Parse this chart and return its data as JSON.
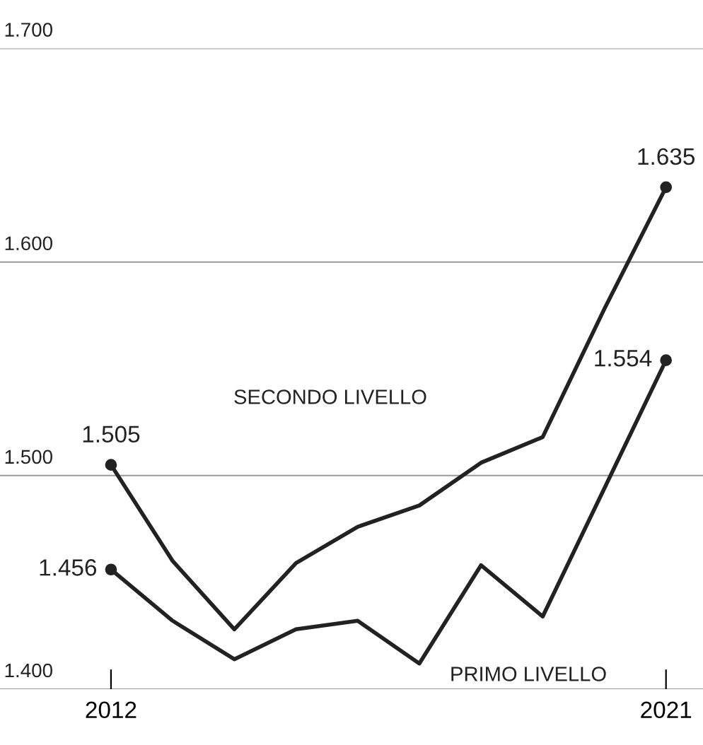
{
  "chart_data": {
    "type": "line",
    "x": [
      2012,
      2013,
      2014,
      2015,
      2016,
      2017,
      2018,
      2019,
      2020,
      2021
    ],
    "series": [
      {
        "color": "#222222",
        "values": [
          1505,
          1460,
          1428,
          1459,
          1476,
          1486,
          1506,
          1518,
          1578,
          1635
        ],
        "value_labels": [
          "1.505",
          null,
          null,
          null,
          null,
          null,
          null,
          null,
          null,
          "1.635"
        ]
      },
      {
        "color": "#222222",
        "values": [
          1456,
          1432,
          1414,
          1428,
          1432,
          1412,
          1458,
          1434,
          1494,
          1554
        ],
        "value_labels": [
          "1.456",
          null,
          null,
          null,
          null,
          null,
          null,
          null,
          null,
          "1.554"
        ]
      }
    ],
    "annotations": [
      "SECONDO LIVELLO",
      "PRIMO LIVELLO"
    ],
    "xlim": [
      2010.2,
      2021.6
    ],
    "xticks": [
      2012,
      2021
    ],
    "ylim": [
      1400,
      1700
    ],
    "yticks": [
      {
        "value": 1400,
        "label": "1.400"
      },
      {
        "value": 1500,
        "label": "1.500"
      },
      {
        "value": 1600,
        "label": "1.600"
      },
      {
        "value": 1700,
        "label": "1.700"
      }
    ],
    "grid": "y",
    "line_style": "solid"
  }
}
